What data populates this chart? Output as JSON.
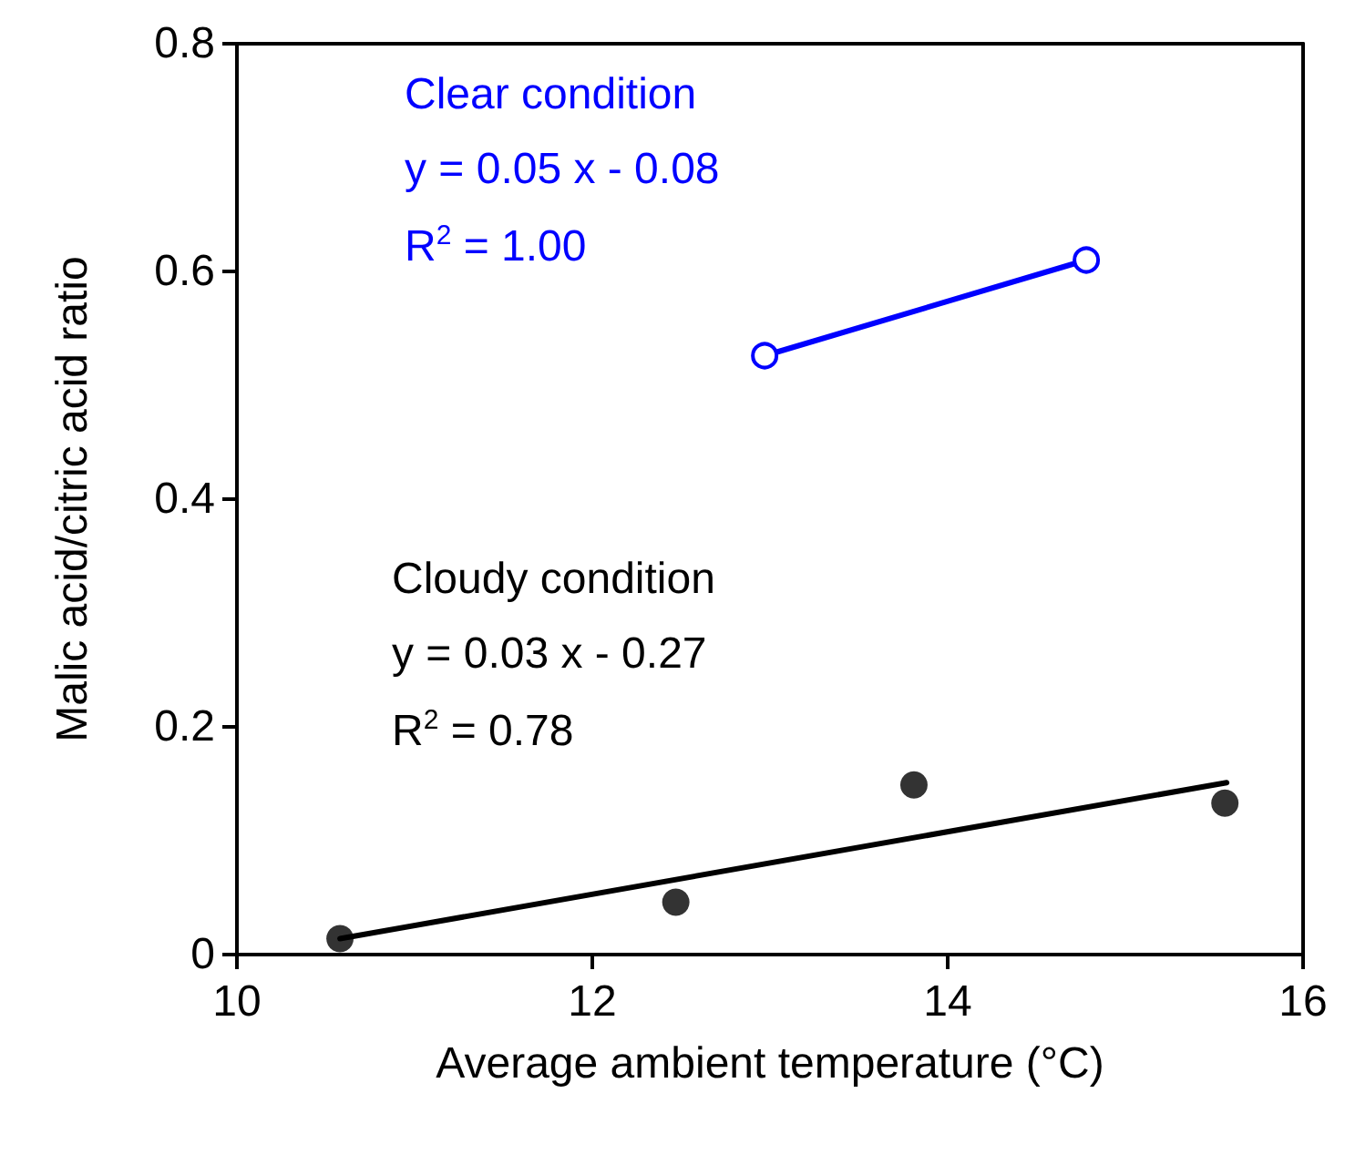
{
  "chart_data": {
    "type": "scatter",
    "xlabel": "Average ambient temperature (°C)",
    "ylabel": "Malic acid/citric acid ratio",
    "xlim": [
      10,
      16
    ],
    "xticks": [
      10,
      12,
      14,
      16
    ],
    "ylim": [
      0,
      0.8
    ],
    "yticks": [
      0,
      0.2,
      0.4,
      0.6,
      0.8
    ],
    "grid": false,
    "legend": false,
    "marker": "circle",
    "annotations": [
      "y = 0.05 x - 0.08",
      "R$^{2}$ = 1.00",
      "y = 0.03 x - 0.27",
      "R$^{2}$ = 0.78"
    ],
    "series": [
      {
        "name": "Clear condition",
        "type": "line",
        "color": "#0000ff",
        "x": [
          12.97,
          14.78
        ],
        "values": [
          0.526,
          0.61
        ]
      },
      {
        "name": "Cloudy condition",
        "color": "#000000",
        "x": [
          10.58,
          12.47,
          13.81,
          15.56
        ],
        "values": [
          0.014,
          0.046,
          0.149,
          0.133
        ]
      },
      {
        "type": "line",
        "color": "#000000",
        "marker": "none",
        "x": [
          10.58,
          15.57
        ],
        "values": [
          0.014,
          0.151
        ]
      }
    ]
  }
}
